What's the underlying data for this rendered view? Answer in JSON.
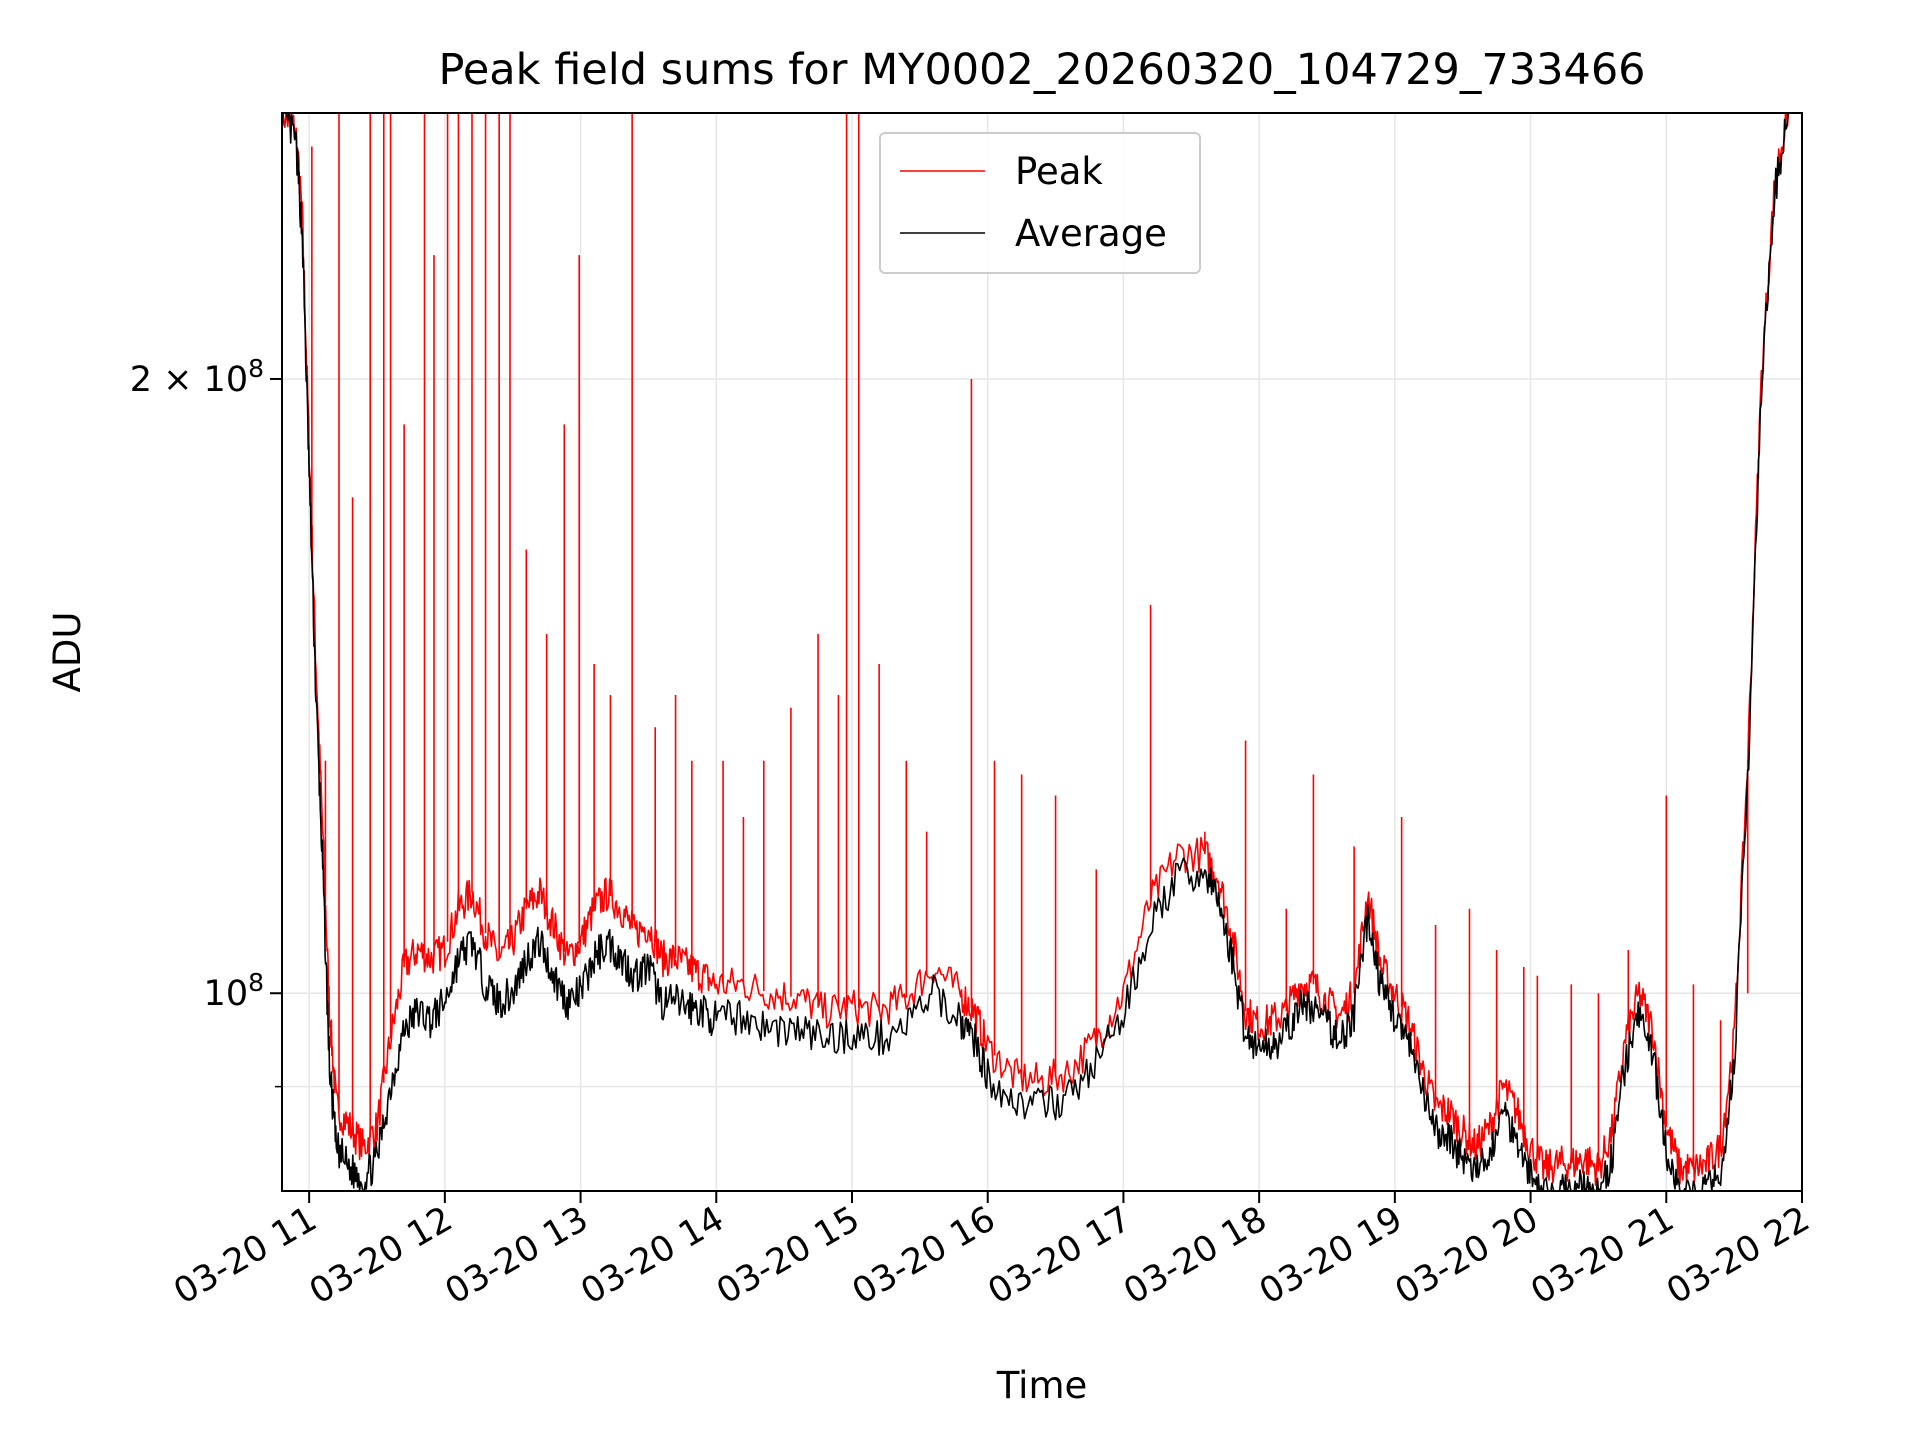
{
  "chart_data": {
    "type": "line",
    "title": "Peak field sums for MY0002_20260320_104729_733466",
    "xlabel": "Time",
    "ylabel": "ADU",
    "yscale": "log",
    "ylim": [
      80000000,
      270000000
    ],
    "xlim_hours": [
      10.8,
      22.0
    ],
    "grid": true,
    "legend_position": "upper center",
    "x_ticks": [
      {
        "hour": 11,
        "label": "03-20 11"
      },
      {
        "hour": 12,
        "label": "03-20 12"
      },
      {
        "hour": 13,
        "label": "03-20 13"
      },
      {
        "hour": 14,
        "label": "03-20 14"
      },
      {
        "hour": 15,
        "label": "03-20 15"
      },
      {
        "hour": 16,
        "label": "03-20 16"
      },
      {
        "hour": 17,
        "label": "03-20 17"
      },
      {
        "hour": 18,
        "label": "03-20 18"
      },
      {
        "hour": 19,
        "label": "03-20 19"
      },
      {
        "hour": 20,
        "label": "03-20 20"
      },
      {
        "hour": 21,
        "label": "03-20 21"
      },
      {
        "hour": 22,
        "label": "03-20 22"
      }
    ],
    "y_major_ticks": [
      {
        "value": 100000000,
        "mantissa": "",
        "exponent": "8"
      },
      {
        "value": 200000000,
        "mantissa": "2",
        "exponent": "8"
      }
    ],
    "y_minor_ticks": [
      90000000,
      300000000
    ],
    "series": [
      {
        "name": "Peak",
        "color": "#ff0000",
        "x_hours": [
          10.8,
          10.9,
          10.95,
          11.0,
          11.05,
          11.1,
          11.15,
          11.2,
          11.3,
          11.4,
          11.5,
          11.6,
          11.7,
          11.8,
          11.9,
          12.0,
          12.1,
          12.2,
          12.3,
          12.4,
          12.5,
          12.6,
          12.7,
          12.8,
          12.9,
          13.0,
          13.1,
          13.2,
          13.3,
          13.4,
          13.5,
          13.6,
          13.7,
          13.8,
          13.9,
          14.0,
          14.2,
          14.4,
          14.6,
          14.8,
          15.0,
          15.2,
          15.4,
          15.6,
          15.8,
          15.9,
          16.0,
          16.2,
          16.4,
          16.6,
          16.8,
          17.0,
          17.2,
          17.4,
          17.6,
          17.7,
          17.8,
          17.9,
          18.0,
          18.1,
          18.2,
          18.3,
          18.4,
          18.5,
          18.6,
          18.7,
          18.8,
          18.9,
          19.0,
          19.1,
          19.2,
          19.3,
          19.4,
          19.5,
          19.6,
          19.7,
          19.8,
          19.9,
          20.0,
          20.1,
          20.2,
          20.3,
          20.4,
          20.5,
          20.6,
          20.7,
          20.8,
          20.9,
          21.0,
          21.1,
          21.2,
          21.3,
          21.4,
          21.5,
          21.6,
          21.7,
          21.8,
          21.9
        ],
        "values": [
          270000000,
          265000000,
          240000000,
          185000000,
          145000000,
          120000000,
          98000000,
          88000000,
          86000000,
          84000000,
          86000000,
          95000000,
          103000000,
          105000000,
          104000000,
          105000000,
          110000000,
          112000000,
          107000000,
          104000000,
          106000000,
          110000000,
          112000000,
          108000000,
          104000000,
          106000000,
          110000000,
          112000000,
          110000000,
          107000000,
          108000000,
          104000000,
          104000000,
          103000000,
          102000000,
          101000000,
          101000000,
          100000000,
          99500000,
          98000000,
          98500000,
          98000000,
          99500000,
          103000000,
          100000000,
          98000000,
          94000000,
          91000000,
          90500000,
          91500000,
          95000000,
          100000000,
          111000000,
          117000000,
          117000000,
          114000000,
          107000000,
          98000000,
          96500000,
          97000000,
          98000000,
          101000000,
          101000000,
          99000000,
          97500000,
          100000000,
          112000000,
          103000000,
          100000000,
          97000000,
          92000000,
          88000000,
          87500000,
          85500000,
          84000000,
          86000000,
          90000000,
          87500000,
          84000000,
          82000000,
          82500000,
          82500000,
          83000000,
          82000000,
          85500000,
          95000000,
          100000000,
          96000000,
          86000000,
          82000000,
          82000000,
          82500000,
          84000000,
          95000000,
          130000000,
          200000000,
          250000000,
          272000000
        ],
        "spikes": [
          [
            11.02,
            260000000
          ],
          [
            11.12,
            130000000
          ],
          [
            11.22,
            270000000
          ],
          [
            11.32,
            175000000
          ],
          [
            11.45,
            270000000
          ],
          [
            11.55,
            270000000
          ],
          [
            11.6,
            270000000
          ],
          [
            11.7,
            190000000
          ],
          [
            11.85,
            270000000
          ],
          [
            11.92,
            230000000
          ],
          [
            12.02,
            270000000
          ],
          [
            12.1,
            270000000
          ],
          [
            12.2,
            270000000
          ],
          [
            12.3,
            270000000
          ],
          [
            12.4,
            270000000
          ],
          [
            12.48,
            270000000
          ],
          [
            12.6,
            165000000
          ],
          [
            12.75,
            150000000
          ],
          [
            12.88,
            190000000
          ],
          [
            12.99,
            230000000
          ],
          [
            13.1,
            145000000
          ],
          [
            13.22,
            140000000
          ],
          [
            13.38,
            270000000
          ],
          [
            13.55,
            135000000
          ],
          [
            13.7,
            140000000
          ],
          [
            13.82,
            130000000
          ],
          [
            14.05,
            130000000
          ],
          [
            14.2,
            122000000
          ],
          [
            14.35,
            130000000
          ],
          [
            14.55,
            138000000
          ],
          [
            14.75,
            150000000
          ],
          [
            14.9,
            140000000
          ],
          [
            14.96,
            270000000
          ],
          [
            15.05,
            270000000
          ],
          [
            15.2,
            145000000
          ],
          [
            15.4,
            130000000
          ],
          [
            15.55,
            120000000
          ],
          [
            15.88,
            200000000
          ],
          [
            16.05,
            130000000
          ],
          [
            16.25,
            128000000
          ],
          [
            16.5,
            125000000
          ],
          [
            16.8,
            115000000
          ],
          [
            17.2,
            155000000
          ],
          [
            17.6,
            120000000
          ],
          [
            17.9,
            133000000
          ],
          [
            18.2,
            110000000
          ],
          [
            18.4,
            128000000
          ],
          [
            18.7,
            118000000
          ],
          [
            19.05,
            122000000
          ],
          [
            19.3,
            108000000
          ],
          [
            19.55,
            110000000
          ],
          [
            19.75,
            105000000
          ],
          [
            19.95,
            103000000
          ],
          [
            20.05,
            102000000
          ],
          [
            20.3,
            101000000
          ],
          [
            20.5,
            100000000
          ],
          [
            20.72,
            105000000
          ],
          [
            21.0,
            125000000
          ],
          [
            21.2,
            101000000
          ],
          [
            21.4,
            97000000
          ],
          [
            21.6,
            100000000
          ]
        ]
      },
      {
        "name": "Average",
        "color": "#000000",
        "x_hours": [
          10.8,
          10.9,
          10.95,
          11.0,
          11.05,
          11.1,
          11.15,
          11.2,
          11.3,
          11.4,
          11.5,
          11.6,
          11.7,
          11.8,
          11.9,
          12.0,
          12.1,
          12.2,
          12.3,
          12.4,
          12.5,
          12.6,
          12.7,
          12.8,
          12.9,
          13.0,
          13.1,
          13.2,
          13.3,
          13.4,
          13.5,
          13.6,
          13.7,
          13.8,
          13.9,
          14.0,
          14.2,
          14.4,
          14.6,
          14.8,
          15.0,
          15.2,
          15.4,
          15.6,
          15.8,
          15.9,
          16.0,
          16.2,
          16.4,
          16.6,
          16.8,
          17.0,
          17.2,
          17.4,
          17.6,
          17.7,
          17.8,
          17.9,
          18.0,
          18.1,
          18.2,
          18.3,
          18.4,
          18.5,
          18.6,
          18.7,
          18.8,
          18.9,
          19.0,
          19.1,
          19.2,
          19.3,
          19.4,
          19.5,
          19.6,
          19.7,
          19.8,
          19.9,
          20.0,
          20.1,
          20.2,
          20.3,
          20.4,
          20.5,
          20.6,
          20.7,
          20.8,
          20.9,
          21.0,
          21.1,
          21.2,
          21.3,
          21.4,
          21.5,
          21.6,
          21.7,
          21.8,
          21.9
        ],
        "values": [
          270000000,
          262000000,
          235000000,
          180000000,
          140000000,
          115000000,
          92000000,
          84000000,
          82000000,
          81000000,
          83000000,
          90000000,
          96000000,
          98000000,
          97000000,
          99000000,
          104000000,
          106000000,
          101000000,
          99000000,
          100000000,
          104000000,
          106000000,
          102000000,
          99000000,
          100000000,
          104000000,
          106000000,
          104000000,
          102000000,
          103000000,
          99000000,
          99000000,
          98500000,
          98000000,
          97000000,
          97500000,
          96000000,
          96000000,
          95000000,
          95500000,
          95000000,
          96500000,
          100000000,
          97000000,
          95000000,
          91000000,
          88500000,
          88000000,
          89000000,
          92500000,
          97500000,
          108000000,
          114000000,
          114500000,
          111000000,
          104000000,
          95500000,
          94000000,
          94500000,
          95500000,
          98500000,
          98500000,
          96500000,
          95000000,
          97500000,
          109000000,
          100500000,
          97500000,
          94500000,
          89500000,
          85500000,
          85000000,
          83000000,
          81500000,
          83500000,
          87500000,
          85000000,
          81500000,
          79500000,
          80000000,
          80000000,
          80500000,
          79500000,
          83000000,
          92500000,
          97500000,
          93500000,
          83500000,
          79500000,
          79500000,
          80000000,
          81500000,
          92500000,
          127000000,
          197000000,
          247000000,
          270000000
        ]
      }
    ]
  }
}
